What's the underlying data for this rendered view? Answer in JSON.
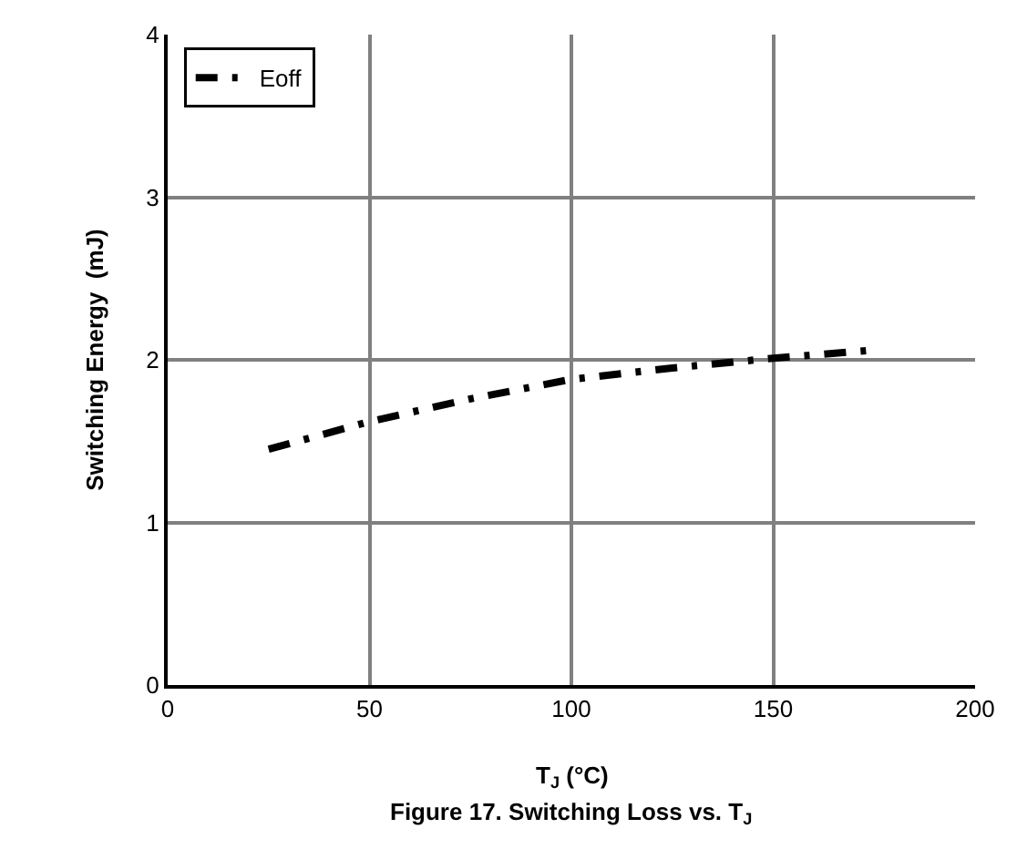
{
  "chart_data": {
    "type": "line",
    "xlabel": "T$_{J}$ (°C)",
    "ylabel": "Switching Energy  (mJ)",
    "x": [
      25,
      50,
      75,
      100,
      125,
      150,
      175
    ],
    "series": [
      {
        "name": "Eoff",
        "color": "#000000",
        "values": [
          1.45,
          1.62,
          1.76,
          1.88,
          1.95,
          2.01,
          2.06
        ]
      }
    ],
    "xlim": [
      0,
      200
    ],
    "xticks": [
      0,
      50,
      100,
      150,
      200
    ],
    "ylim": [
      0,
      4
    ],
    "yticks": [
      0,
      1,
      2,
      3,
      4
    ],
    "grid": true,
    "legend": "top left",
    "line_style": "dashdot",
    "marker": "none",
    "annotations": [
      "Figure 17. Switching Loss vs. T$_{J}$"
    ]
  }
}
